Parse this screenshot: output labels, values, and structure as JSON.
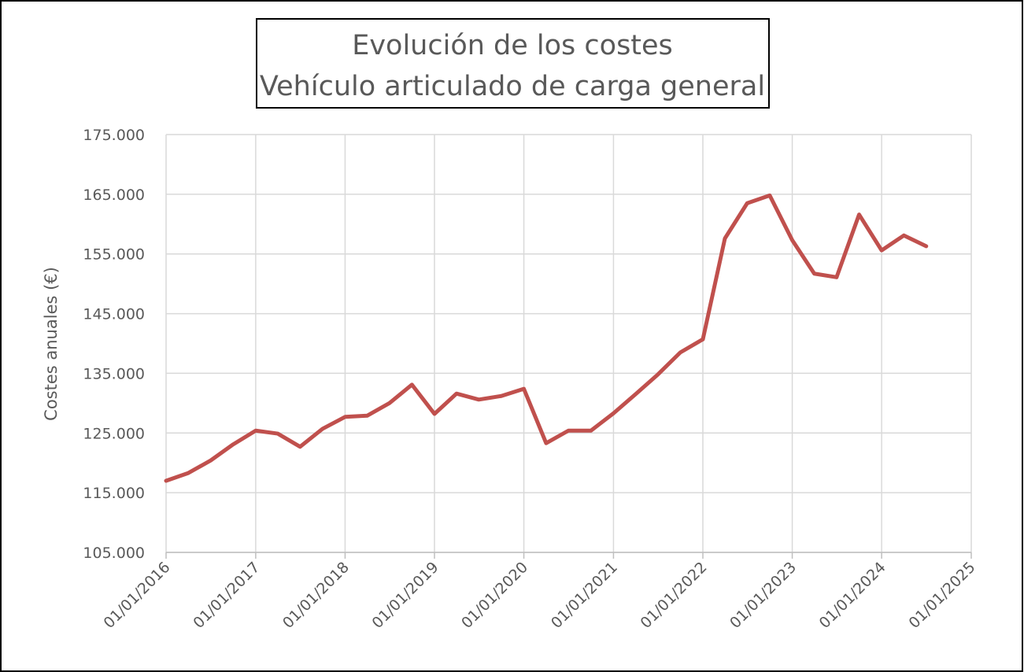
{
  "chart_data": {
    "type": "line",
    "title": "Evolución de los costes",
    "subtitle": "Vehículo articulado de carga general",
    "y_label": "Costes anuales (€)",
    "x": [
      "2016-01-01",
      "2016-04-01",
      "2016-07-01",
      "2016-10-01",
      "2017-01-01",
      "2017-04-01",
      "2017-07-01",
      "2017-10-01",
      "2018-01-01",
      "2018-04-01",
      "2018-07-01",
      "2018-10-01",
      "2019-01-01",
      "2019-04-01",
      "2019-07-01",
      "2019-10-01",
      "2020-01-01",
      "2020-04-01",
      "2020-07-01",
      "2020-10-01",
      "2021-01-01",
      "2021-04-01",
      "2021-07-01",
      "2021-10-01",
      "2022-01-01",
      "2022-04-01",
      "2022-07-01",
      "2022-10-01",
      "2023-01-01",
      "2023-04-01",
      "2023-07-01",
      "2023-10-01",
      "2024-01-01",
      "2024-04-01",
      "2024-07-01"
    ],
    "series": [
      {
        "name": "Costes anuales",
        "color": "#c0504d",
        "values": [
          117000,
          118300,
          120400,
          123100,
          125400,
          124900,
          122700,
          125700,
          127700,
          127900,
          130000,
          133100,
          128200,
          131600,
          130600,
          131200,
          132400,
          123300,
          125400,
          125400,
          128300,
          131500,
          134800,
          138500,
          140700,
          157600,
          163500,
          164800,
          157300,
          151700,
          151100,
          161600,
          155600,
          158100,
          156300
        ]
      }
    ],
    "xlim": [
      "2016-01-01",
      "2025-01-01"
    ],
    "xticks": [
      {
        "value": "2016-01-01",
        "label": "01/01/2016"
      },
      {
        "value": "2017-01-01",
        "label": "01/01/2017"
      },
      {
        "value": "2018-01-01",
        "label": "01/01/2018"
      },
      {
        "value": "2019-01-01",
        "label": "01/01/2019"
      },
      {
        "value": "2020-01-01",
        "label": "01/01/2020"
      },
      {
        "value": "2021-01-01",
        "label": "01/01/2021"
      },
      {
        "value": "2022-01-01",
        "label": "01/01/2022"
      },
      {
        "value": "2023-01-01",
        "label": "01/01/2023"
      },
      {
        "value": "2024-01-01",
        "label": "01/01/2024"
      },
      {
        "value": "2025-01-01",
        "label": "01/01/2025"
      }
    ],
    "ylim": [
      105000,
      175000
    ],
    "yticks": [
      {
        "value": 105000,
        "label": "105.000"
      },
      {
        "value": 115000,
        "label": "115.000"
      },
      {
        "value": 125000,
        "label": "125.000"
      },
      {
        "value": 135000,
        "label": "135.000"
      },
      {
        "value": 145000,
        "label": "145.000"
      },
      {
        "value": 155000,
        "label": "155.000"
      },
      {
        "value": 165000,
        "label": "165.000"
      },
      {
        "value": 175000,
        "label": "175.000"
      }
    ],
    "grid": true
  }
}
